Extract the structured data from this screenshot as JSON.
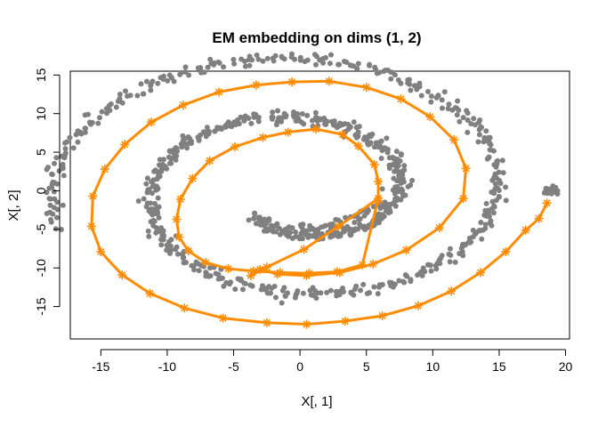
{
  "chart_data": {
    "type": "scatter",
    "title": "EM embedding on dims (1, 2)",
    "xlabel": "X[, 1]",
    "ylabel": "X[, 2]",
    "xlim": [
      -17.3,
      20.3
    ],
    "ylim": [
      -19.2,
      15.5
    ],
    "x_ticks": [
      -15,
      -10,
      -5,
      0,
      5,
      10,
      15,
      20
    ],
    "y_ticks": [
      -15,
      -10,
      -5,
      0,
      5,
      10,
      15
    ],
    "grid": false,
    "legend": "none",
    "colors": {
      "points": "#808080",
      "path": "#ff8c00"
    },
    "series": [
      {
        "kind": "points",
        "description_free": true,
        "spiral": {
          "theta_start": 3.92,
          "theta_end": 15.95,
          "a": 0.0,
          "b": 1.185,
          "y_scale": 1.02,
          "count": 900,
          "jitter": 0.35
        },
        "tail": [
          [
            0.2,
            -4.6
          ],
          [
            1.0,
            -4.8
          ],
          [
            2.0,
            -4.5
          ],
          [
            3.0,
            -4.0
          ],
          [
            4.0,
            -3.4
          ],
          [
            5.0,
            -2.7
          ],
          [
            5.8,
            -2.0
          ],
          [
            19.0,
            0.0
          ],
          [
            18.8,
            0.2
          ],
          [
            19.2,
            0.0
          ]
        ]
      },
      {
        "kind": "path",
        "x": [
          5.9,
          5.9,
          5.6,
          4.4,
          3.2,
          1.2,
          -0.9,
          -2.8,
          -4.9,
          -6.8,
          -8.1,
          -9.0,
          -9.3,
          -9.1,
          -8.4,
          -7.1,
          -5.4,
          -3.5,
          -1.5,
          0.7,
          2.8,
          4.7,
          5.9,
          2.9,
          0.3,
          -2.5,
          -3.7,
          -3.0,
          -1.7,
          0.5,
          3.0,
          5.5,
          8.0,
          10.5,
          12.3,
          12.5,
          11.6,
          9.8,
          7.6,
          5.0,
          2.2,
          -0.6,
          -3.3,
          -6.1,
          -8.8,
          -11.2,
          -13.2,
          -14.7,
          -15.6,
          -15.7,
          -15.0,
          -13.4,
          -11.3,
          -8.7,
          -5.8,
          -2.5,
          0.5,
          3.4,
          6.2,
          8.9,
          11.4,
          13.6,
          15.5,
          17.0,
          18.0,
          18.6
        ],
        "y": [
          -1.3,
          1.2,
          3.4,
          5.8,
          7.3,
          8.0,
          7.6,
          6.9,
          5.7,
          3.9,
          1.6,
          -1.1,
          -3.7,
          -6.0,
          -7.8,
          -9.3,
          -10.1,
          -10.4,
          -10.6,
          -10.7,
          -10.5,
          -9.6,
          -1.0,
          -4.6,
          -7.6,
          -9.9,
          -11.0,
          -10.2,
          -10.8,
          -11.0,
          -10.6,
          -9.5,
          -7.7,
          -4.8,
          -1.0,
          2.9,
          6.6,
          9.6,
          11.9,
          13.4,
          14.2,
          14.1,
          13.7,
          12.8,
          11.1,
          8.9,
          6.0,
          2.8,
          -0.7,
          -4.6,
          -7.9,
          -10.9,
          -13.3,
          -15.2,
          -16.5,
          -17.1,
          -17.3,
          -16.9,
          -16.2,
          -14.9,
          -13.0,
          -10.6,
          -7.9,
          -5.1,
          -3.6,
          -1.6
        ]
      }
    ]
  }
}
